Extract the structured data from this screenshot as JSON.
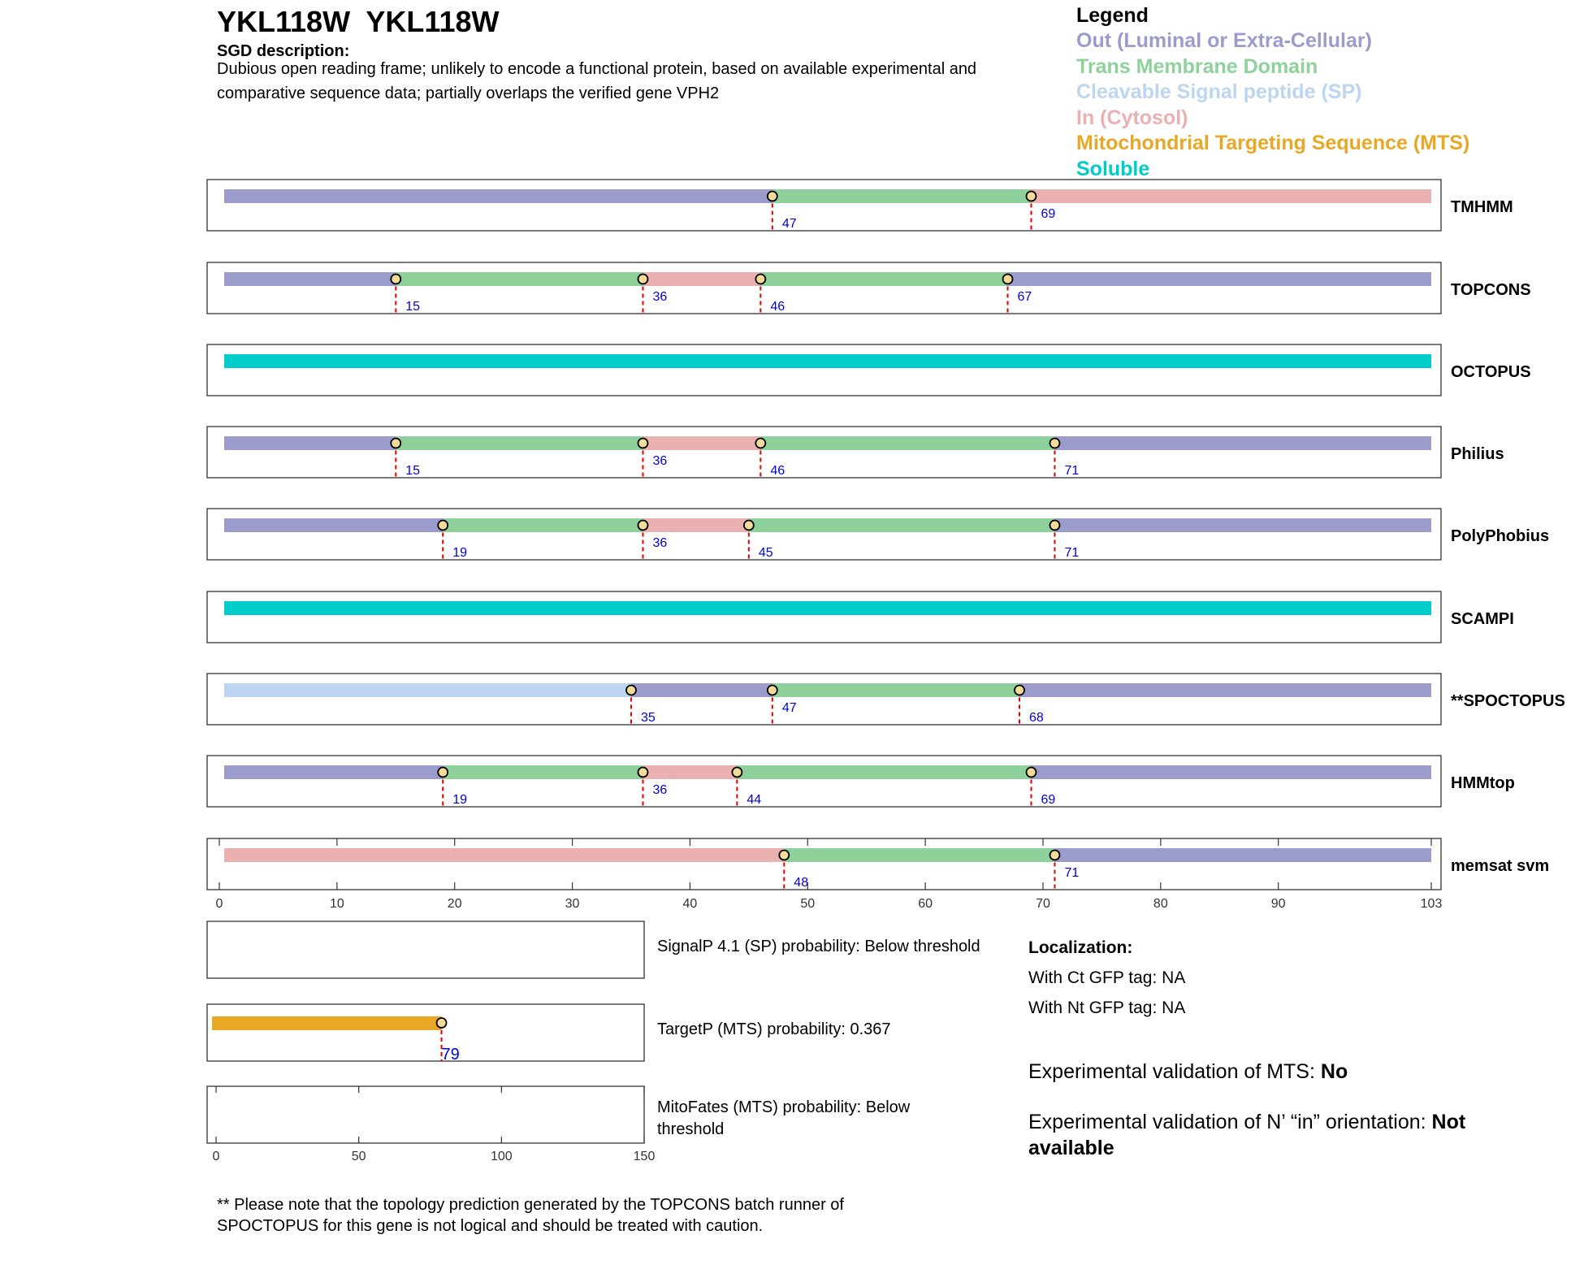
{
  "header": {
    "title": "YKL118W  YKL118W",
    "sgd_label": "SGD description:",
    "sgd_text": "Dubious open reading frame; unlikely to encode a functional protein, based on available experimental and comparative sequence data; partially overlaps the verified gene VPH2"
  },
  "legend": {
    "title": "Legend",
    "items": [
      {
        "label": "Out (Luminal or Extra-Cellular)",
        "color": "#9b9bcc"
      },
      {
        "label": "Trans Membrane Domain",
        "color": "#8fd19b"
      },
      {
        "label": "Cleavable Signal peptide (SP)",
        "color": "#bcd6f2"
      },
      {
        "label": "In (Cytosol)",
        "color": "#ebb0b0"
      },
      {
        "label": "Mitochondrial Targeting Sequence (MTS)",
        "color": "#e8a825"
      },
      {
        "label": "Soluble",
        "color": "#00cdc9"
      }
    ]
  },
  "colors": {
    "out": "#9b9bcc",
    "tm": "#8fd19b",
    "sp": "#bcd6f2",
    "in": "#ebb0b0",
    "mts": "#e8a825",
    "sol": "#00cdc9"
  },
  "chart_data": {
    "type": "bar",
    "xlim": [
      0,
      103
    ],
    "xticks": [
      0,
      10,
      20,
      30,
      40,
      50,
      60,
      70,
      80,
      90,
      103
    ],
    "tracks": [
      {
        "name": "TMHMM",
        "segments": [
          {
            "type": "out",
            "start": 0,
            "end": 47
          },
          {
            "type": "tm",
            "start": 47,
            "end": 69
          },
          {
            "type": "in",
            "start": 69,
            "end": 103
          }
        ],
        "markers": [
          47,
          69
        ],
        "label_rows": [
          1,
          0
        ]
      },
      {
        "name": "TOPCONS",
        "segments": [
          {
            "type": "out",
            "start": 0,
            "end": 15
          },
          {
            "type": "tm",
            "start": 15,
            "end": 36
          },
          {
            "type": "in",
            "start": 36,
            "end": 46
          },
          {
            "type": "tm",
            "start": 46,
            "end": 67
          },
          {
            "type": "out",
            "start": 67,
            "end": 103
          }
        ],
        "markers": [
          15,
          36,
          46,
          67
        ],
        "label_rows": [
          1,
          0,
          1,
          0
        ]
      },
      {
        "name": "OCTOPUS",
        "segments": [
          {
            "type": "sol",
            "start": 0,
            "end": 103
          }
        ],
        "markers": [],
        "label_rows": []
      },
      {
        "name": "Philius",
        "segments": [
          {
            "type": "out",
            "start": 0,
            "end": 15
          },
          {
            "type": "tm",
            "start": 15,
            "end": 36
          },
          {
            "type": "in",
            "start": 36,
            "end": 46
          },
          {
            "type": "tm",
            "start": 46,
            "end": 71
          },
          {
            "type": "out",
            "start": 71,
            "end": 103
          }
        ],
        "markers": [
          15,
          36,
          46,
          71
        ],
        "label_rows": [
          1,
          0,
          1,
          1
        ]
      },
      {
        "name": "PolyPhobius",
        "segments": [
          {
            "type": "out",
            "start": 0,
            "end": 19
          },
          {
            "type": "tm",
            "start": 19,
            "end": 36
          },
          {
            "type": "in",
            "start": 36,
            "end": 45
          },
          {
            "type": "tm",
            "start": 45,
            "end": 71
          },
          {
            "type": "out",
            "start": 71,
            "end": 103
          }
        ],
        "markers": [
          19,
          36,
          45,
          71
        ],
        "label_rows": [
          1,
          0,
          1,
          1
        ]
      },
      {
        "name": "SCAMPI",
        "segments": [
          {
            "type": "sol",
            "start": 0,
            "end": 103
          }
        ],
        "markers": [],
        "label_rows": []
      },
      {
        "name": "**SPOCTOPUS",
        "segments": [
          {
            "type": "sp",
            "start": 0,
            "end": 35
          },
          {
            "type": "out",
            "start": 35,
            "end": 47
          },
          {
            "type": "tm",
            "start": 47,
            "end": 68
          },
          {
            "type": "out",
            "start": 68,
            "end": 103
          }
        ],
        "markers": [
          35,
          47,
          68
        ],
        "label_rows": [
          1,
          0,
          1
        ]
      },
      {
        "name": "HMMtop",
        "segments": [
          {
            "type": "out",
            "start": 0,
            "end": 19
          },
          {
            "type": "tm",
            "start": 19,
            "end": 36
          },
          {
            "type": "in",
            "start": 36,
            "end": 44
          },
          {
            "type": "tm",
            "start": 44,
            "end": 69
          },
          {
            "type": "out",
            "start": 69,
            "end": 103
          }
        ],
        "markers": [
          19,
          36,
          44,
          69
        ],
        "label_rows": [
          1,
          0,
          1,
          1
        ]
      },
      {
        "name": "memsat svm",
        "segments": [
          {
            "type": "in",
            "start": 0,
            "end": 48
          },
          {
            "type": "tm",
            "start": 48,
            "end": 71
          },
          {
            "type": "out",
            "start": 71,
            "end": 103
          }
        ],
        "markers": [
          48,
          71
        ],
        "label_rows": [
          1,
          0
        ],
        "marker_labels": [
          "48",
          "71"
        ]
      }
    ],
    "small_panels": {
      "xlim": [
        0,
        150
      ],
      "xticks": [
        0,
        50,
        100,
        150
      ],
      "signalp": {
        "label": "SignalP 4.1 (SP) probability: Below threshold"
      },
      "targetp": {
        "label": "TargetP (MTS) probability: 0.367",
        "segment": {
          "start": 0,
          "end": 79
        },
        "marker": 79,
        "marker_label": "79"
      },
      "mitofates": {
        "label": "MitoFates (MTS) probability: Below threshold"
      }
    }
  },
  "localization": {
    "title": "Localization:",
    "ct": "With Ct GFP tag: NA",
    "nt": "With Nt GFP tag: NA"
  },
  "validation": {
    "mts_prefix": "Experimental validation of MTS: ",
    "mts_value": "No",
    "nin_prefix": "Experimental validation of N’ “in” orientation: ",
    "nin_value": "Not available"
  },
  "footnote": "** Please note that the topology prediction generated by the TOPCONS batch runner of SPOCTOPUS for this gene is not logical and should be treated with caution."
}
